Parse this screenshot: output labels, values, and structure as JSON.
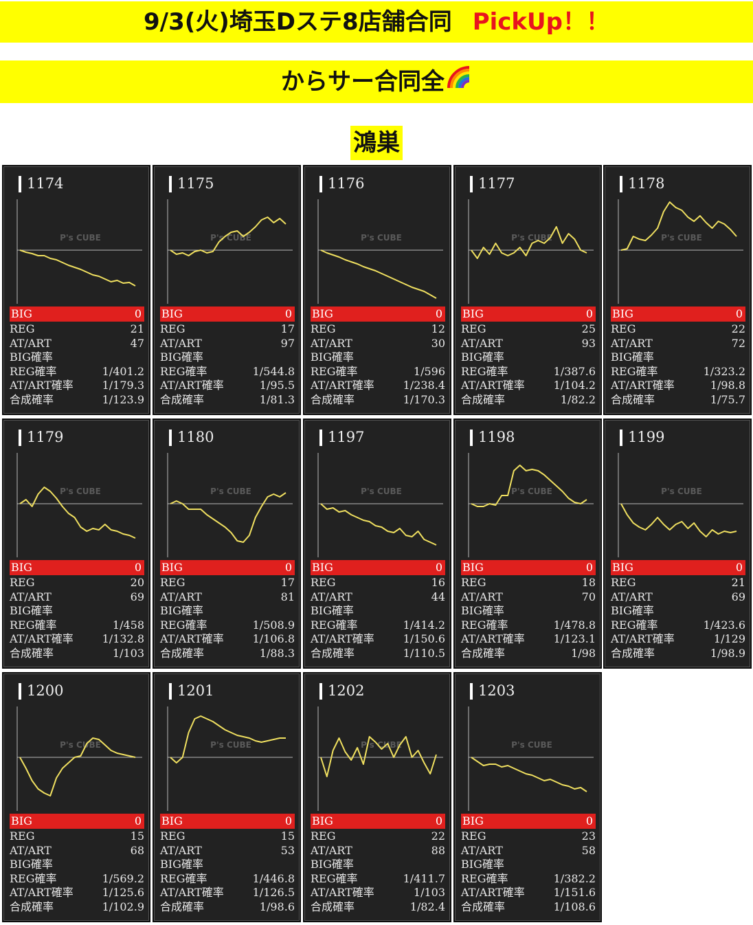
{
  "banner1": {
    "main": "9/3(火)埼玉Dステ8店舗合同",
    "pick": "PickUp！！"
  },
  "banner2": {
    "text": "からサー合同全"
  },
  "store": "鴻巣",
  "labels": {
    "big": "BIG",
    "reg": "REG",
    "atart": "AT/ART",
    "big_rate": "BIG確率",
    "reg_rate": "REG確率",
    "atart_rate": "AT/ART確率",
    "total_rate": "合成確率"
  },
  "watermark": "P's CUBE",
  "colors": {
    "banner": "#ffff00",
    "pick": "#e8141e",
    "card": "#222222",
    "big_bar": "#e0201e",
    "line": "#f0e060"
  },
  "machines": [
    {
      "no": "1174",
      "big": "0",
      "reg": "21",
      "atart": "47",
      "big_rate": "",
      "reg_rate": "1/401.2",
      "atart_rate": "1/179.3",
      "total_rate": "1/123.9",
      "trend": [
        0,
        -3,
        -5,
        -8,
        -8,
        -12,
        -14,
        -18,
        -22,
        -25,
        -28,
        -32,
        -36,
        -38,
        -42,
        -46,
        -44,
        -48,
        -47,
        -52
      ]
    },
    {
      "no": "1175",
      "big": "0",
      "reg": "17",
      "atart": "97",
      "big_rate": "",
      "reg_rate": "1/544.8",
      "atart_rate": "1/95.5",
      "total_rate": "1/81.3",
      "trend": [
        0,
        -6,
        -4,
        -8,
        -2,
        0,
        -4,
        -2,
        12,
        20,
        26,
        28,
        20,
        26,
        34,
        44,
        48,
        40,
        46,
        38
      ]
    },
    {
      "no": "1176",
      "big": "0",
      "reg": "12",
      "atart": "30",
      "big_rate": "",
      "reg_rate": "1/596",
      "atart_rate": "1/238.4",
      "total_rate": "1/170.3",
      "trend": [
        0,
        -4,
        -7,
        -10,
        -14,
        -17,
        -20,
        -24,
        -27,
        -30,
        -34,
        -38,
        -42,
        -46,
        -50,
        -54,
        -57,
        -60,
        -65,
        -70
      ]
    },
    {
      "no": "1177",
      "big": "0",
      "reg": "25",
      "atart": "93",
      "big_rate": "",
      "reg_rate": "1/387.6",
      "atart_rate": "1/104.2",
      "total_rate": "1/82.2",
      "trend": [
        0,
        -12,
        4,
        -6,
        10,
        -4,
        -8,
        -4,
        4,
        -8,
        10,
        14,
        10,
        18,
        34,
        10,
        24,
        16,
        0,
        -4
      ]
    },
    {
      "no": "1178",
      "big": "0",
      "reg": "22",
      "atart": "72",
      "big_rate": "",
      "reg_rate": "1/323.2",
      "atart_rate": "1/98.8",
      "total_rate": "1/75.7",
      "trend": [
        0,
        2,
        20,
        16,
        14,
        22,
        32,
        56,
        70,
        62,
        58,
        48,
        42,
        50,
        40,
        32,
        42,
        38,
        30,
        20
      ]
    },
    {
      "no": "1179",
      "big": "0",
      "reg": "20",
      "atart": "69",
      "big_rate": "",
      "reg_rate": "1/458",
      "atart_rate": "1/132.8",
      "total_rate": "1/103",
      "trend": [
        0,
        6,
        -4,
        14,
        24,
        18,
        8,
        -4,
        -14,
        -20,
        -34,
        -40,
        -36,
        -38,
        -30,
        -38,
        -40,
        -44,
        -46,
        -50
      ]
    },
    {
      "no": "1180",
      "big": "0",
      "reg": "17",
      "atart": "81",
      "big_rate": "",
      "reg_rate": "1/508.9",
      "atart_rate": "1/106.8",
      "total_rate": "1/88.3",
      "trend": [
        0,
        4,
        0,
        -8,
        -8,
        -8,
        -16,
        -22,
        -28,
        -34,
        -42,
        -54,
        -56,
        -46,
        -20,
        -4,
        10,
        14,
        10,
        16
      ]
    },
    {
      "no": "1197",
      "big": "0",
      "reg": "16",
      "atart": "44",
      "big_rate": "",
      "reg_rate": "1/414.2",
      "atart_rate": "1/150.6",
      "total_rate": "1/110.5",
      "trend": [
        0,
        -8,
        -6,
        -12,
        -10,
        -16,
        -20,
        -24,
        -26,
        -32,
        -34,
        -40,
        -42,
        -36,
        -46,
        -48,
        -40,
        -52,
        -56,
        -60
      ]
    },
    {
      "no": "1198",
      "big": "0",
      "reg": "18",
      "atart": "70",
      "big_rate": "",
      "reg_rate": "1/478.8",
      "atart_rate": "1/123.1",
      "total_rate": "1/98",
      "trend": [
        0,
        -4,
        -4,
        0,
        -2,
        12,
        12,
        48,
        56,
        48,
        50,
        48,
        42,
        34,
        26,
        18,
        8,
        2,
        0,
        6
      ]
    },
    {
      "no": "1199",
      "big": "0",
      "reg": "21",
      "atart": "69",
      "big_rate": "",
      "reg_rate": "1/423.6",
      "atart_rate": "1/129",
      "total_rate": "1/98.9",
      "trend": [
        0,
        -16,
        -28,
        -34,
        -38,
        -30,
        -20,
        -30,
        -38,
        -30,
        -26,
        -36,
        -28,
        -40,
        -48,
        -38,
        -44,
        -40,
        -42,
        -40
      ]
    },
    {
      "no": "1200",
      "big": "0",
      "reg": "15",
      "atart": "68",
      "big_rate": "",
      "reg_rate": "1/569.2",
      "atart_rate": "1/125.6",
      "total_rate": "1/102.9",
      "trend": [
        0,
        -16,
        -34,
        -46,
        -52,
        -56,
        -30,
        -16,
        -8,
        0,
        2,
        20,
        28,
        26,
        18,
        10,
        6,
        4,
        2,
        0
      ]
    },
    {
      "no": "1201",
      "big": "0",
      "reg": "15",
      "atart": "53",
      "big_rate": "",
      "reg_rate": "1/446.8",
      "atart_rate": "1/126.5",
      "total_rate": "1/98.6",
      "trend": [
        0,
        -8,
        0,
        36,
        56,
        60,
        56,
        52,
        46,
        40,
        36,
        32,
        30,
        28,
        24,
        22,
        24,
        26,
        28,
        28
      ]
    },
    {
      "no": "1202",
      "big": "0",
      "reg": "22",
      "atart": "88",
      "big_rate": "",
      "reg_rate": "1/411.7",
      "atart_rate": "1/103",
      "total_rate": "1/82.4",
      "trend": [
        0,
        -28,
        10,
        28,
        8,
        -4,
        14,
        -10,
        30,
        22,
        12,
        20,
        0,
        18,
        30,
        0,
        10,
        -8,
        -24,
        4
      ]
    },
    {
      "no": "1203",
      "big": "0",
      "reg": "23",
      "atart": "58",
      "big_rate": "",
      "reg_rate": "1/382.2",
      "atart_rate": "1/151.6",
      "total_rate": "1/108.6",
      "trend": [
        0,
        -6,
        -12,
        -10,
        -10,
        -14,
        -12,
        -16,
        -20,
        -24,
        -26,
        -30,
        -34,
        -32,
        -36,
        -40,
        -42,
        -46,
        -44,
        -50
      ]
    }
  ]
}
